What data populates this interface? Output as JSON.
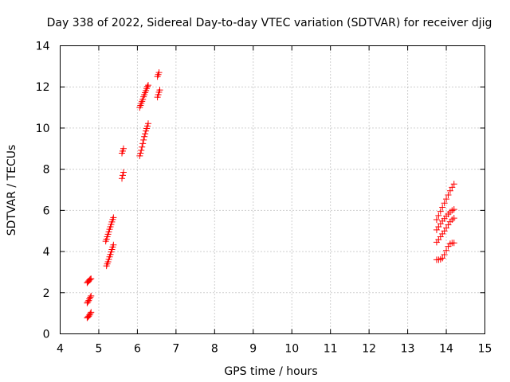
{
  "chart_data": {
    "type": "scatter",
    "title": "Day 338 of 2022, Sidereal Day-to-day VTEC variation (SDTVAR) for receiver djig",
    "xlabel": "GPS time / hours",
    "ylabel": "SDTVAR / TECUs",
    "xlim": [
      4,
      15
    ],
    "ylim": [
      0,
      14
    ],
    "xticks": [
      "4",
      "5",
      "6",
      "7",
      "8",
      "9",
      "10",
      "11",
      "12",
      "13",
      "14",
      "15"
    ],
    "yticks": [
      "0",
      "2",
      "4",
      "6",
      "8",
      "10",
      "12",
      "14"
    ],
    "grid": true,
    "marker": "+",
    "color": "#ff0000",
    "series": [
      {
        "name": "SDTVAR",
        "points": [
          [
            4.7,
            0.78
          ],
          [
            4.72,
            0.82
          ],
          [
            4.74,
            0.86
          ],
          [
            4.76,
            0.92
          ],
          [
            4.78,
            0.98
          ],
          [
            4.8,
            1.05
          ],
          [
            4.7,
            1.5
          ],
          [
            4.72,
            1.56
          ],
          [
            4.74,
            1.62
          ],
          [
            4.76,
            1.7
          ],
          [
            4.78,
            1.78
          ],
          [
            4.8,
            1.84
          ],
          [
            4.7,
            2.48
          ],
          [
            4.72,
            2.53
          ],
          [
            4.74,
            2.57
          ],
          [
            4.76,
            2.62
          ],
          [
            4.78,
            2.66
          ],
          [
            4.8,
            2.68
          ],
          [
            5.2,
            3.3
          ],
          [
            5.22,
            3.4
          ],
          [
            5.24,
            3.5
          ],
          [
            5.26,
            3.62
          ],
          [
            5.28,
            3.74
          ],
          [
            5.3,
            3.86
          ],
          [
            5.32,
            3.98
          ],
          [
            5.34,
            4.1
          ],
          [
            5.36,
            4.22
          ],
          [
            5.38,
            4.32
          ],
          [
            5.18,
            4.5
          ],
          [
            5.2,
            4.6
          ],
          [
            5.22,
            4.72
          ],
          [
            5.24,
            4.84
          ],
          [
            5.26,
            4.96
          ],
          [
            5.28,
            5.08
          ],
          [
            5.3,
            5.2
          ],
          [
            5.32,
            5.32
          ],
          [
            5.34,
            5.44
          ],
          [
            5.36,
            5.56
          ],
          [
            5.38,
            5.65
          ],
          [
            5.6,
            7.55
          ],
          [
            5.62,
            7.7
          ],
          [
            5.64,
            7.85
          ],
          [
            5.6,
            8.78
          ],
          [
            5.62,
            8.88
          ],
          [
            5.64,
            9.0
          ],
          [
            6.06,
            8.65
          ],
          [
            6.08,
            8.78
          ],
          [
            6.1,
            8.92
          ],
          [
            6.12,
            9.08
          ],
          [
            6.14,
            9.25
          ],
          [
            6.16,
            9.42
          ],
          [
            6.18,
            9.58
          ],
          [
            6.2,
            9.72
          ],
          [
            6.22,
            9.86
          ],
          [
            6.24,
            9.98
          ],
          [
            6.26,
            10.1
          ],
          [
            6.28,
            10.22
          ],
          [
            6.06,
            11.0
          ],
          [
            6.08,
            11.1
          ],
          [
            6.1,
            11.2
          ],
          [
            6.12,
            11.3
          ],
          [
            6.14,
            11.4
          ],
          [
            6.16,
            11.52
          ],
          [
            6.18,
            11.62
          ],
          [
            6.2,
            11.72
          ],
          [
            6.22,
            11.82
          ],
          [
            6.24,
            11.92
          ],
          [
            6.26,
            12.02
          ],
          [
            6.28,
            12.08
          ],
          [
            6.52,
            11.5
          ],
          [
            6.54,
            11.62
          ],
          [
            6.56,
            11.74
          ],
          [
            6.58,
            11.85
          ],
          [
            6.52,
            12.5
          ],
          [
            6.54,
            12.6
          ],
          [
            6.56,
            12.7
          ],
          [
            13.75,
            3.6
          ],
          [
            13.8,
            3.6
          ],
          [
            13.85,
            3.62
          ],
          [
            13.9,
            3.68
          ],
          [
            13.95,
            3.85
          ],
          [
            14.0,
            4.05
          ],
          [
            14.05,
            4.25
          ],
          [
            14.1,
            4.38
          ],
          [
            14.15,
            4.42
          ],
          [
            14.2,
            4.42
          ],
          [
            13.75,
            4.45
          ],
          [
            13.8,
            4.58
          ],
          [
            13.85,
            4.72
          ],
          [
            13.9,
            4.86
          ],
          [
            13.95,
            5.0
          ],
          [
            14.0,
            5.15
          ],
          [
            14.05,
            5.3
          ],
          [
            14.1,
            5.45
          ],
          [
            14.15,
            5.55
          ],
          [
            14.2,
            5.62
          ],
          [
            13.75,
            5.05
          ],
          [
            13.8,
            5.2
          ],
          [
            13.85,
            5.35
          ],
          [
            13.9,
            5.48
          ],
          [
            13.95,
            5.6
          ],
          [
            14.0,
            5.72
          ],
          [
            14.05,
            5.82
          ],
          [
            14.1,
            5.92
          ],
          [
            14.15,
            6.0
          ],
          [
            14.2,
            6.05
          ],
          [
            13.75,
            5.55
          ],
          [
            13.8,
            5.75
          ],
          [
            13.85,
            5.95
          ],
          [
            13.9,
            6.15
          ],
          [
            13.95,
            6.35
          ],
          [
            14.0,
            6.55
          ],
          [
            14.05,
            6.75
          ],
          [
            14.1,
            6.95
          ],
          [
            14.15,
            7.12
          ],
          [
            14.2,
            7.28
          ]
        ]
      }
    ]
  }
}
